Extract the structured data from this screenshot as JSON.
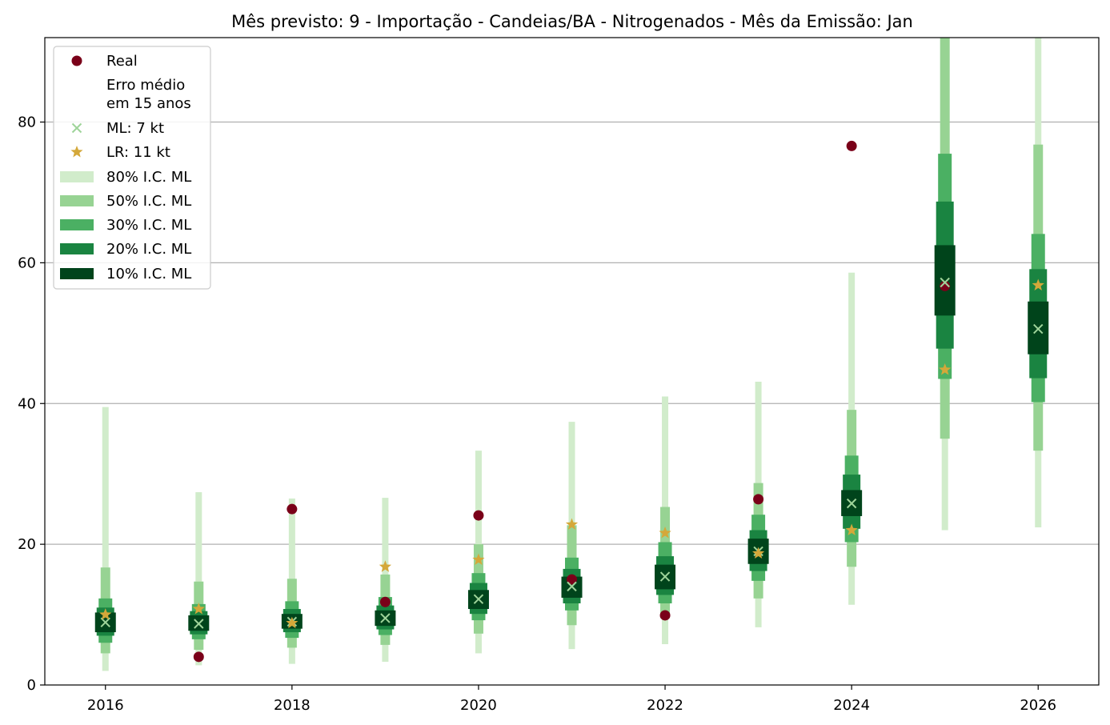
{
  "chart_data": {
    "type": "scatter",
    "title": "Mês previsto: 9 - Importação - Candeias/BA - Nitrogenados - Mês da Emissão: Jan",
    "xlabel": "",
    "ylabel": "",
    "xlim": [
      2015.35,
      2026.65
    ],
    "ylim": [
      0,
      92
    ],
    "x_ticks": [
      2016,
      2018,
      2020,
      2022,
      2024,
      2026
    ],
    "y_ticks": [
      0,
      20,
      40,
      60,
      80
    ],
    "grid": "horizontal",
    "legend_position": "upper-left",
    "legend": [
      {
        "key": "real",
        "label": "Real"
      },
      {
        "key": "erro",
        "label": "Erro médio\nem 15 anos"
      },
      {
        "key": "ml",
        "label": "ML: 7 kt"
      },
      {
        "key": "lr",
        "label": "LR: 11 kt"
      },
      {
        "key": "ci80",
        "label": "80% I.C. ML"
      },
      {
        "key": "ci50",
        "label": "50% I.C. ML"
      },
      {
        "key": "ci30",
        "label": "30% I.C. ML"
      },
      {
        "key": "ci20",
        "label": "20% I.C. ML"
      },
      {
        "key": "ci10",
        "label": "10% I.C. ML"
      }
    ],
    "colors": {
      "real": "#7a0019",
      "ml": "#9fd49a",
      "lr": "#d4a83a",
      "ci80": "#d1eccb",
      "ci50": "#97d393",
      "ci30": "#4bb063",
      "ci20": "#1a8441",
      "ci10": "#00441b"
    },
    "points": [
      {
        "year": 2016,
        "real": null,
        "ml": 8.9,
        "lr": 10.0,
        "ci80": [
          2.0,
          39.5
        ],
        "ci50": [
          4.5,
          16.7
        ],
        "ci30": [
          6.0,
          12.3
        ],
        "ci20": [
          7.0,
          11.0
        ],
        "ci10": [
          7.5,
          10.3
        ]
      },
      {
        "year": 2017,
        "real": 4.0,
        "ml": 8.7,
        "lr": 10.8,
        "ci80": [
          2.8,
          27.4
        ],
        "ci50": [
          5.0,
          14.7
        ],
        "ci30": [
          6.5,
          11.5
        ],
        "ci20": [
          7.2,
          10.5
        ],
        "ci10": [
          7.7,
          9.9
        ]
      },
      {
        "year": 2018,
        "real": 25.0,
        "ml": 9.0,
        "lr": 8.8,
        "ci80": [
          3.0,
          26.5
        ],
        "ci50": [
          5.3,
          15.1
        ],
        "ci30": [
          6.7,
          11.9
        ],
        "ci20": [
          7.5,
          10.8
        ],
        "ci10": [
          8.0,
          10.1
        ]
      },
      {
        "year": 2019,
        "real": 11.8,
        "ml": 9.5,
        "lr": 16.8,
        "ci80": [
          3.3,
          26.6
        ],
        "ci50": [
          5.7,
          15.7
        ],
        "ci30": [
          7.1,
          12.5
        ],
        "ci20": [
          7.9,
          11.3
        ],
        "ci10": [
          8.4,
          10.6
        ]
      },
      {
        "year": 2020,
        "real": 24.1,
        "ml": 12.2,
        "lr": 17.8,
        "ci80": [
          4.5,
          33.3
        ],
        "ci50": [
          7.3,
          20.0
        ],
        "ci30": [
          9.2,
          15.9
        ],
        "ci20": [
          10.1,
          14.5
        ],
        "ci10": [
          10.8,
          13.5
        ]
      },
      {
        "year": 2021,
        "real": 15.0,
        "ml": 14.0,
        "lr": 22.8,
        "ci80": [
          5.1,
          37.4
        ],
        "ci50": [
          8.5,
          22.7
        ],
        "ci30": [
          10.6,
          18.1
        ],
        "ci20": [
          11.6,
          16.5
        ],
        "ci10": [
          12.4,
          15.4
        ]
      },
      {
        "year": 2022,
        "real": 9.9,
        "ml": 15.4,
        "lr": 21.6,
        "ci80": [
          5.8,
          41.0
        ],
        "ci50": [
          9.5,
          25.3
        ],
        "ci30": [
          11.6,
          20.3
        ],
        "ci20": [
          12.8,
          18.3
        ],
        "ci10": [
          13.6,
          17.1
        ]
      },
      {
        "year": 2023,
        "real": 26.4,
        "ml": 19.0,
        "lr": 18.7,
        "ci80": [
          8.2,
          43.1
        ],
        "ci50": [
          12.3,
          28.7
        ],
        "ci30": [
          14.8,
          24.2
        ],
        "ci20": [
          16.2,
          22.0
        ],
        "ci10": [
          17.2,
          20.8
        ]
      },
      {
        "year": 2024,
        "real": 76.6,
        "ml": 25.8,
        "lr": 22.0,
        "ci80": [
          11.4,
          58.6
        ],
        "ci50": [
          16.8,
          39.1
        ],
        "ci30": [
          20.3,
          32.6
        ],
        "ci20": [
          22.2,
          29.9
        ],
        "ci10": [
          24.0,
          27.7
        ]
      },
      {
        "year": 2025,
        "real": 56.7,
        "ml": 57.2,
        "lr": 44.8,
        "ci80": [
          22.0,
          110.0
        ],
        "ci50": [
          35.0,
          100.0
        ],
        "ci30": [
          43.5,
          75.5
        ],
        "ci20": [
          47.8,
          68.7
        ],
        "ci10": [
          52.5,
          62.5
        ]
      },
      {
        "year": 2026,
        "real": null,
        "ml": 50.6,
        "lr": 56.8,
        "ci80": [
          22.4,
          93.0
        ],
        "ci50": [
          33.3,
          76.8
        ],
        "ci30": [
          40.2,
          64.1
        ],
        "ci20": [
          43.6,
          59.1
        ],
        "ci10": [
          47.0,
          54.5
        ]
      }
    ]
  }
}
